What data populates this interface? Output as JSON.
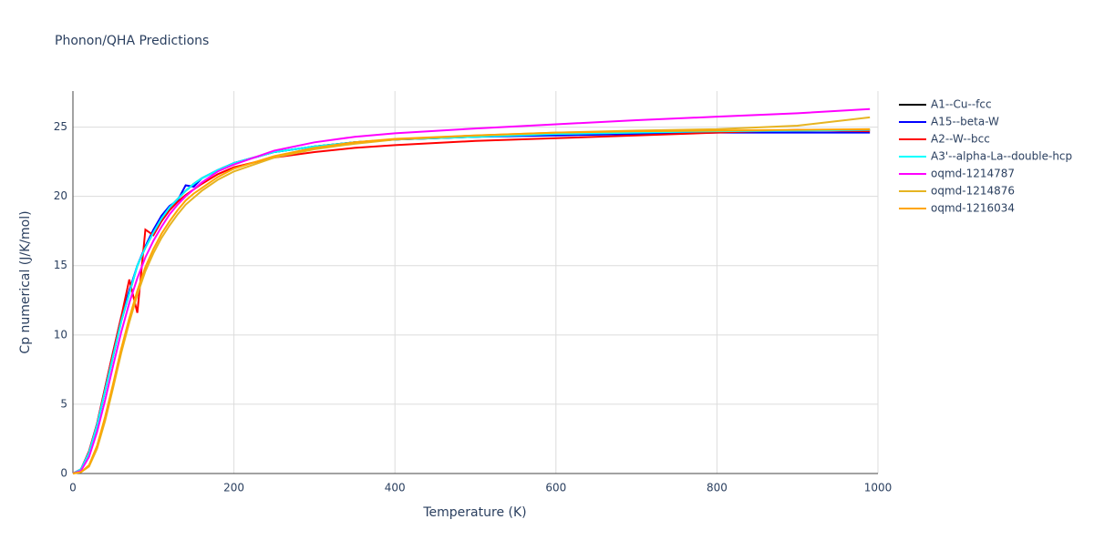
{
  "chart_data": {
    "type": "line",
    "title": "Phonon/QHA Predictions",
    "x_label": "Temperature (K)",
    "y_label": "Cp numerical (J/K/mol)",
    "x": [
      0,
      10,
      20,
      30,
      40,
      50,
      60,
      70,
      80,
      90,
      100,
      110,
      120,
      130,
      140,
      150,
      160,
      180,
      200,
      250,
      300,
      350,
      400,
      500,
      600,
      700,
      800,
      900,
      990
    ],
    "series": [
      {
        "name": "A1--Cu--fcc",
        "color": "#000000",
        "values": [
          0,
          0.3,
          1.5,
          3.5,
          6,
          8.5,
          11,
          13,
          15,
          16.3,
          17.4,
          18.4,
          19.2,
          19.8,
          20.4,
          20.9,
          21.3,
          21.9,
          22.4,
          23.2,
          23.6,
          23.9,
          24.1,
          24.3,
          24.5,
          24.6,
          24.7,
          24.75,
          24.8
        ]
      },
      {
        "name": "A15--beta-W",
        "color": "#0000ff",
        "values": [
          0,
          0.3,
          1.6,
          3.6,
          6.2,
          8.8,
          11.3,
          13.2,
          15,
          16.4,
          17.6,
          18.6,
          19.3,
          19.7,
          20.8,
          20.7,
          21.3,
          21.9,
          22.4,
          23.2,
          23.6,
          23.9,
          24.1,
          24.3,
          24.4,
          24.5,
          24.6,
          24.6,
          24.6
        ]
      },
      {
        "name": "A2--W--bcc",
        "color": "#ff0000",
        "values": [
          0,
          0.3,
          1.6,
          3.6,
          6.2,
          8.8,
          11.3,
          14,
          11.6,
          17.6,
          17.2,
          18.2,
          19,
          19.6,
          20.1,
          20.5,
          20.9,
          21.6,
          22.1,
          22.8,
          23.2,
          23.5,
          23.7,
          24,
          24.2,
          24.4,
          24.6,
          24.8,
          24.7
        ]
      },
      {
        "name": "A3'--alpha-La--double-hcp",
        "color": "#00ffff",
        "values": [
          0,
          0.3,
          1.5,
          3.5,
          6,
          8.5,
          11,
          13,
          15,
          16.3,
          17.4,
          18.4,
          19.2,
          19.8,
          20.4,
          20.9,
          21.3,
          21.9,
          22.4,
          23.2,
          23.6,
          23.9,
          24.1,
          24.3,
          24.5,
          24.6,
          24.7,
          24.75,
          24.8
        ]
      },
      {
        "name": "oqmd-1214787",
        "color": "#ff00ff",
        "values": [
          0,
          0.2,
          1.2,
          3,
          5.3,
          7.8,
          10.2,
          12.3,
          14.1,
          15.6,
          16.8,
          17.8,
          18.7,
          19.4,
          20,
          20.5,
          21,
          21.8,
          22.3,
          23.3,
          23.9,
          24.3,
          24.55,
          24.9,
          25.2,
          25.5,
          25.75,
          26,
          26.3
        ]
      },
      {
        "name": "oqmd-1214876",
        "color": "#e6b422",
        "values": [
          0,
          0.1,
          0.5,
          1.8,
          3.8,
          6.2,
          8.7,
          10.9,
          12.9,
          14.6,
          15.9,
          17,
          17.9,
          18.7,
          19.4,
          19.9,
          20.4,
          21.2,
          21.8,
          22.8,
          23.4,
          23.8,
          24.1,
          24.4,
          24.6,
          24.75,
          24.85,
          25.1,
          25.7
        ]
      },
      {
        "name": "oqmd-1216034",
        "color": "#ffa500",
        "values": [
          0,
          0.1,
          0.6,
          2,
          4.1,
          6.5,
          9,
          11.2,
          13.2,
          14.9,
          16.2,
          17.3,
          18.2,
          19,
          19.7,
          20.2,
          20.6,
          21.4,
          22,
          22.9,
          23.5,
          23.9,
          24.15,
          24.4,
          24.6,
          24.7,
          24.75,
          24.8,
          24.85
        ]
      }
    ],
    "xlim": [
      0,
      1000
    ],
    "ylim": [
      0,
      27.6
    ],
    "xticks": [
      0,
      200,
      400,
      600,
      800,
      1000
    ],
    "yticks": [
      0,
      5,
      10,
      15,
      20,
      25
    ],
    "grid": true,
    "legend": "right"
  }
}
